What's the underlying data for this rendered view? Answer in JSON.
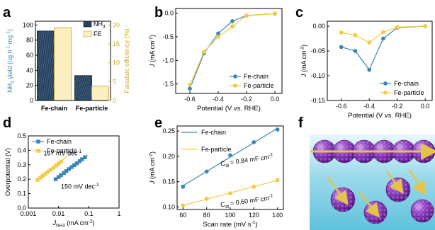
{
  "panels": {
    "a": {
      "letter": "a"
    },
    "b": {
      "letter": "b"
    },
    "c": {
      "letter": "c"
    },
    "d": {
      "letter": "d"
    },
    "e": {
      "letter": "e"
    },
    "f": {
      "letter": "f"
    }
  },
  "colors": {
    "blue": "#3a86b5",
    "yellow": "#f6c945",
    "bar_blue_fill": "#27425c",
    "bar_yellow_fill": "#fbefc0",
    "bar_yellow_edge": "#c8a634",
    "right_axis_yellow": "#d2a928",
    "sphere": "#8a3fbf",
    "arrow": "#e5c24a",
    "scene_bg": "#7fd2e6"
  },
  "chart_data": [
    {
      "panel": "a",
      "type": "bar",
      "categories": [
        "Fe-chain",
        "Fe-particle"
      ],
      "series": [
        {
          "name": "NH3",
          "name_main": "NH",
          "name_sub": "3",
          "axis": "left",
          "values": [
            92,
            33
          ]
        },
        {
          "name": "FE",
          "axis": "right",
          "values": [
            19.3,
            3.8
          ]
        }
      ],
      "ylabel_main": "NH",
      "ylabel_sub": "3",
      "ylabel_rest": " yield (ug h",
      "ylabel_sup1": "-1",
      "ylabel_mid": " mg",
      "ylabel_sup2": "-1",
      "ylabel_end": ")",
      "y2label": "Faradaic efficiency (%)",
      "ylim": [
        0,
        105
      ],
      "y2lim": [
        0,
        21
      ],
      "yticks": [
        "0",
        "20",
        "40",
        "60",
        "80",
        "100"
      ],
      "y2ticks": [
        "0",
        "5",
        "10",
        "15",
        "20"
      ],
      "grid": false,
      "legend": "top-right"
    },
    {
      "panel": "b",
      "type": "line",
      "ylabel_main": "J",
      "ylabel_rest": " (mA cm",
      "ylabel_sup": "-2",
      "ylabel_end": ")",
      "xlabel_main": "Potential (V ",
      "xlabel_italic": "vs.",
      "xlabel_end": " RHE)",
      "xlim": [
        -0.7,
        0.05
      ],
      "ylim": [
        -1.7,
        0.1
      ],
      "xticks": [
        "-0.6",
        "-0.4",
        "-0.2",
        "0.0"
      ],
      "yticks": [
        "-1.5",
        "-1.0",
        "-0.5",
        "0.0"
      ],
      "series": [
        {
          "name": "Fe-chain",
          "color_key": "blue",
          "x": [
            -0.6,
            -0.5,
            -0.4,
            -0.3,
            -0.2,
            0.0
          ],
          "y": [
            -1.6,
            -0.85,
            -0.43,
            -0.17,
            -0.05,
            -0.01
          ]
        },
        {
          "name": "Fe-particle",
          "color_key": "yellow",
          "x": [
            -0.6,
            -0.5,
            -0.4,
            -0.3,
            -0.2,
            0.0
          ],
          "y": [
            -1.52,
            -0.82,
            -0.5,
            -0.28,
            -0.05,
            -0.01
          ]
        }
      ],
      "legend": "bottom-right",
      "grid": false
    },
    {
      "panel": "c",
      "type": "line",
      "ylabel_main": "J",
      "ylabel_rest": " (mA cm",
      "ylabel_sup": "-2",
      "ylabel_end": ")",
      "xlabel_main": "Potential (V ",
      "xlabel_italic": "vs.",
      "xlabel_end": " RHE)",
      "xlim": [
        -0.7,
        0.05
      ],
      "ylim": [
        -0.15,
        0.01
      ],
      "xticks": [
        "-0.6",
        "-0.4",
        "-0.2",
        "0.0"
      ],
      "yticks": [
        "-0.15",
        "-0.10",
        "-0.05",
        "0.00"
      ],
      "series": [
        {
          "name": "Fe-chain",
          "color_key": "blue",
          "x": [
            -0.6,
            -0.5,
            -0.4,
            -0.3,
            -0.2,
            0.0
          ],
          "y": [
            -0.042,
            -0.05,
            -0.088,
            -0.025,
            -0.003,
            0.0
          ]
        },
        {
          "name": "Fe-particle",
          "color_key": "yellow",
          "x": [
            -0.6,
            -0.5,
            -0.4,
            -0.3,
            -0.2,
            0.0
          ],
          "y": [
            -0.013,
            -0.018,
            -0.033,
            -0.012,
            -0.002,
            0.0
          ]
        }
      ],
      "legend": "bottom-right",
      "grid": false
    },
    {
      "panel": "d",
      "type": "scatter",
      "xscale": "log",
      "ylabel": "Overpotential (V)",
      "xlabel_main": "J",
      "xlabel_sub": "NH3",
      "xlabel_rest": " (mA cm",
      "xlabel_sup": "-2",
      "xlabel_end": ")",
      "xlim": [
        0.001,
        1
      ],
      "ylim": [
        0,
        0.5
      ],
      "xticks": [
        "0.001",
        "0.01",
        "0.1",
        "1"
      ],
      "yticks": [
        "0.0",
        "0.1",
        "0.2",
        "0.3",
        "0.4",
        "0.5"
      ],
      "series": [
        {
          "name": "Fe-chain",
          "color_key": "blue",
          "x": [
            0.008,
            0.01,
            0.012,
            0.015,
            0.018,
            0.022,
            0.027,
            0.033,
            0.04,
            0.05,
            0.06,
            0.075
          ],
          "y": [
            0.2,
            0.215,
            0.228,
            0.243,
            0.256,
            0.27,
            0.284,
            0.297,
            0.31,
            0.325,
            0.338,
            0.352
          ],
          "fit": [
            [
              0.007,
              0.188
            ],
            [
              0.09,
              0.366
            ]
          ]
        },
        {
          "name": "Fe-particle",
          "color_key": "yellow",
          "x": [
            0.002,
            0.0025,
            0.003,
            0.0037,
            0.0045,
            0.0055,
            0.0068,
            0.0083,
            0.01,
            0.012
          ],
          "y": [
            0.195,
            0.21,
            0.224,
            0.238,
            0.252,
            0.266,
            0.28,
            0.295,
            0.308,
            0.322
          ],
          "fit": [
            [
              0.0018,
              0.186
            ],
            [
              0.02,
              0.362
            ]
          ]
        }
      ],
      "annotations": [
        {
          "text": "167 mV dec",
          "sup": "-1",
          "color_key": "yellow",
          "at_x": 0.0032,
          "at_y": 0.365
        },
        {
          "text": "150 mV dec",
          "sup": "-1",
          "color_key": "blue",
          "at_x": 0.012,
          "at_y": 0.135
        }
      ],
      "legend": "top-left",
      "grid": false
    },
    {
      "panel": "e",
      "type": "scatter",
      "ylabel_main": "J",
      "ylabel_rest": " (mA cm",
      "ylabel_sup": "-2",
      "ylabel_end": ")",
      "xlabel": "Scan rate (mV s",
      "xlabel_sup": "-1",
      "xlabel_end": ")",
      "xlim": [
        55,
        145
      ],
      "ylim": [
        0.095,
        0.26
      ],
      "xticks": [
        "60",
        "80",
        "100",
        "120",
        "140"
      ],
      "yticks": [
        "0.10",
        "0.15",
        "0.20",
        "0.25"
      ],
      "series": [
        {
          "name": "Fe-chain",
          "color_key": "blue",
          "x": [
            60,
            80,
            100,
            120,
            140
          ],
          "y": [
            0.14,
            0.17,
            0.202,
            0.228,
            0.253
          ]
        },
        {
          "name": "Fe-particle",
          "color_key": "yellow",
          "x": [
            60,
            80,
            100,
            120,
            140
          ],
          "y": [
            0.103,
            0.116,
            0.127,
            0.14,
            0.153
          ]
        }
      ],
      "annotations": [
        {
          "main": "C",
          "sub": "dl",
          "rest": " = 0.84 mF cm",
          "sup": "-2",
          "color_key": "blue",
          "at_x": 92,
          "at_y": 0.181
        },
        {
          "main": "C",
          "sub": "dl",
          "rest": " = 0.60 mF cm",
          "sup": "-2",
          "color_key": "blue",
          "at_x": 92,
          "at_y": 0.1
        }
      ],
      "legend": "top-left",
      "grid": false
    }
  ]
}
